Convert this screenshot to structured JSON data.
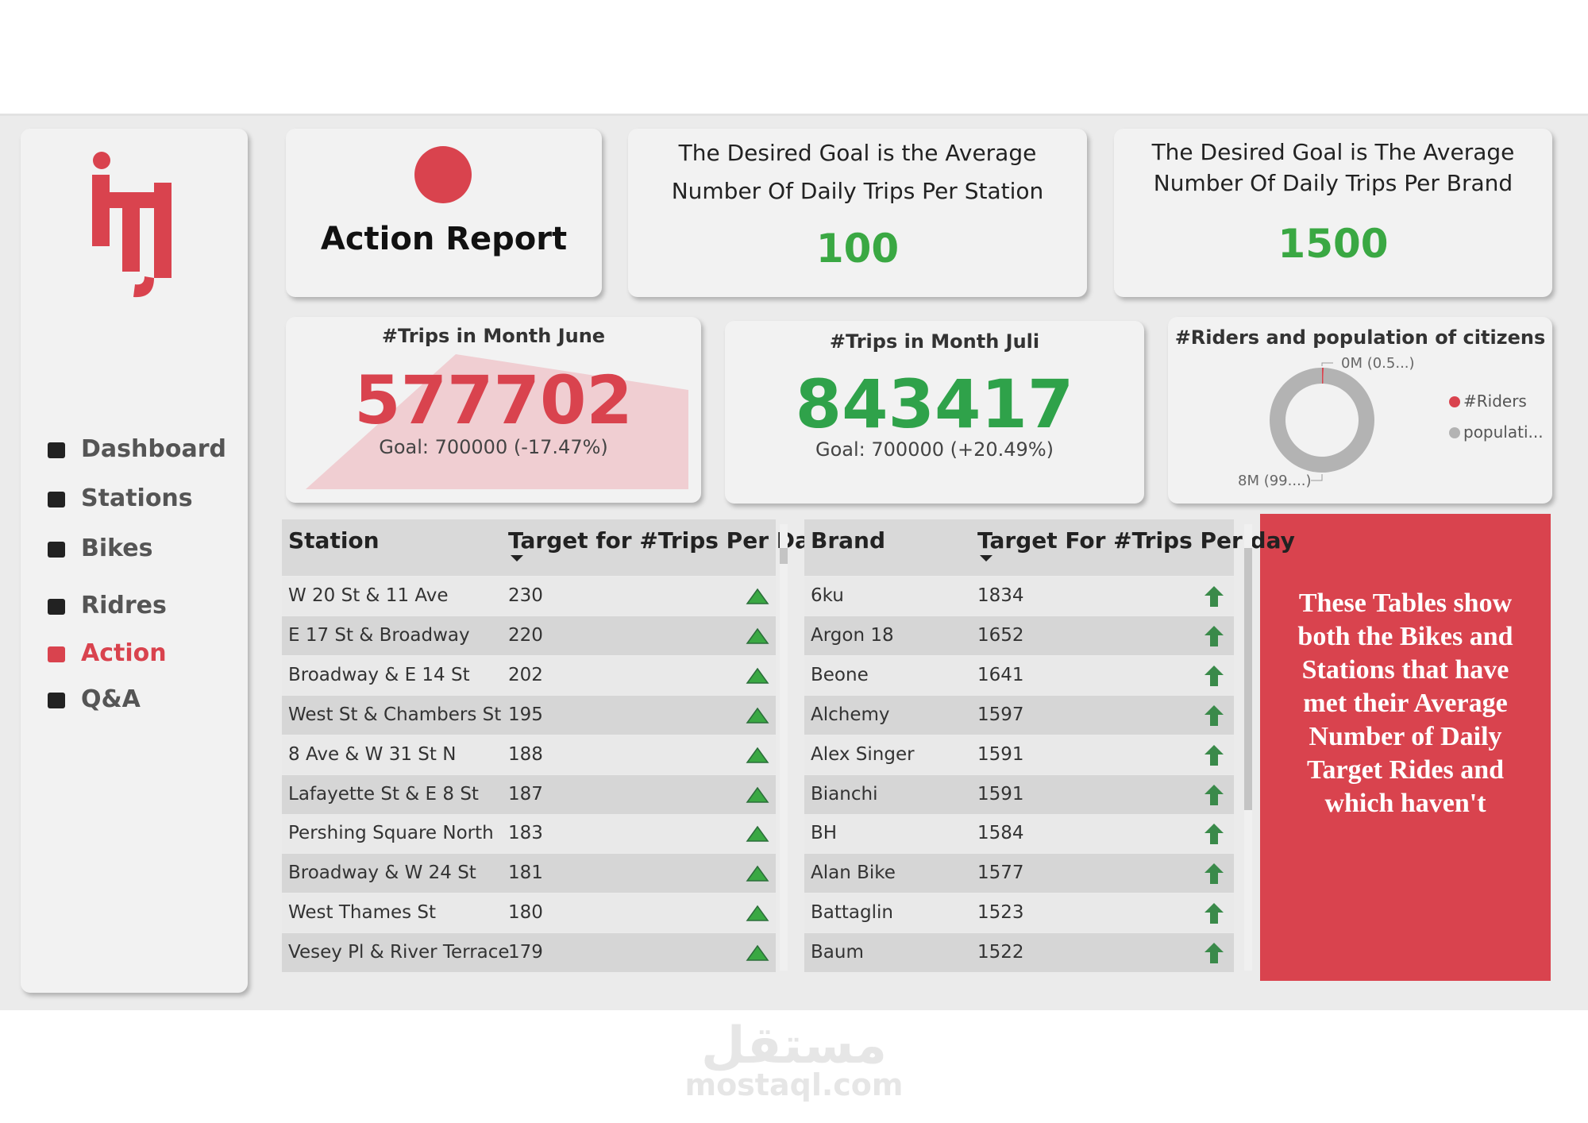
{
  "nav": {
    "items": [
      "Dashboard",
      "Stations",
      "Bikes",
      "Ridres",
      "Action",
      "Q&A"
    ]
  },
  "report_title": "Action Report",
  "goal_cards": [
    {
      "lines": [
        "The Desired Goal is the Average",
        "Number Of Daily Trips Per Station"
      ],
      "value": "100"
    },
    {
      "lines": [
        "The Desired Goal is The Average",
        "Number Of Daily Trips Per Brand"
      ],
      "value": "1500"
    }
  ],
  "kpi_cards": [
    {
      "title": "#Trips in Month June",
      "value": "577702",
      "goal": "Goal: 700000 (-17.47%)"
    },
    {
      "title": "#Trips in Month Juli",
      "value": "843417",
      "goal": "Goal: 700000 (+20.49%)"
    }
  ],
  "chart_data": {
    "type": "donut",
    "title": "#Riders and population of citizens",
    "categories": [
      "#Riders",
      "populati..."
    ],
    "values": [
      0.04,
      8
    ],
    "value_labels": [
      "0M (0.5...)",
      "8M (99....)"
    ],
    "colors": [
      "#d9434e",
      "#b3b3b3"
    ]
  },
  "station_table": {
    "columns": [
      "Station",
      "Target for #Trips Per Day"
    ],
    "rows": [
      [
        "W 20 St & 11 Ave",
        "230"
      ],
      [
        "E 17 St & Broadway",
        "220"
      ],
      [
        "Broadway & E 14 St",
        "202"
      ],
      [
        "West St & Chambers St",
        "195"
      ],
      [
        "8 Ave & W 31 St N",
        "188"
      ],
      [
        "Lafayette St & E 8 St",
        "187"
      ],
      [
        "Pershing Square North",
        "183"
      ],
      [
        "Broadway & W 24 St",
        "181"
      ],
      [
        "West Thames St",
        "180"
      ],
      [
        "Vesey Pl & River Terrace",
        "179"
      ]
    ]
  },
  "brand_table": {
    "columns": [
      "Brand",
      "Target For #Trips Per day"
    ],
    "rows": [
      [
        "6ku",
        "1834"
      ],
      [
        "Argon 18",
        "1652"
      ],
      [
        "Beone",
        "1641"
      ],
      [
        "Alchemy",
        "1597"
      ],
      [
        "Alex Singer",
        "1591"
      ],
      [
        "Bianchi",
        "1591"
      ],
      [
        "BH",
        "1584"
      ],
      [
        "Alan Bike",
        "1577"
      ],
      [
        "Battaglin",
        "1523"
      ],
      [
        "Baum",
        "1522"
      ]
    ]
  },
  "note": "These Tables show both the Bikes and Stations that have met their Average Number of Daily Target Rides and which haven't",
  "watermark": {
    "arabic": "مستقل",
    "latin": "mostaql.com"
  }
}
